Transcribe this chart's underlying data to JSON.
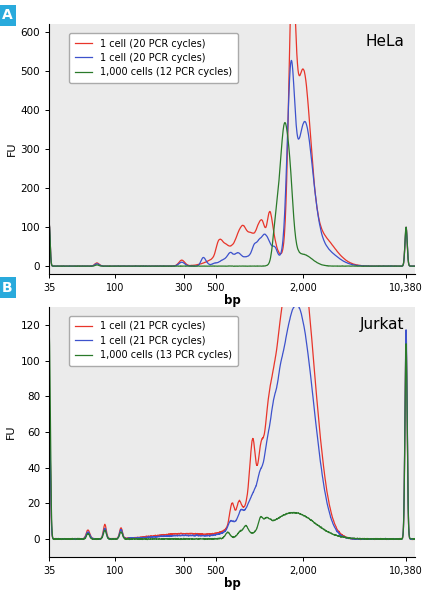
{
  "panel_A": {
    "title": "HeLa",
    "ylabel": "FU",
    "xlabel": "bp",
    "ylim": [
      -20,
      620
    ],
    "yticks": [
      0,
      100,
      200,
      300,
      400,
      500,
      600
    ],
    "legend": [
      {
        "label": "1 cell (20 PCR cycles)",
        "color": "#e8352a"
      },
      {
        "label": "1 cell (20 PCR cycles)",
        "color": "#3d52cc"
      },
      {
        "label": "1,000 cells (12 PCR cycles)",
        "color": "#2a7a2a"
      }
    ]
  },
  "panel_B": {
    "title": "Jurkat",
    "ylabel": "FU",
    "xlabel": "bp",
    "ylim": [
      -10,
      130
    ],
    "yticks": [
      0,
      20,
      40,
      60,
      80,
      100,
      120
    ],
    "legend": [
      {
        "label": "1 cell (21 PCR cycles)",
        "color": "#e8352a"
      },
      {
        "label": "1 cell (21 PCR cycles)",
        "color": "#3d52cc"
      },
      {
        "label": "1,000 cells (13 PCR cycles)",
        "color": "#2a7a2a"
      }
    ]
  },
  "xtick_positions": [
    35,
    100,
    300,
    500,
    2000,
    10380
  ],
  "xtick_labels": [
    "35",
    "100",
    "300",
    "500",
    "2,000",
    "10,380"
  ],
  "bg_color": "#ffffff",
  "plot_bg_color": "#ebebeb"
}
